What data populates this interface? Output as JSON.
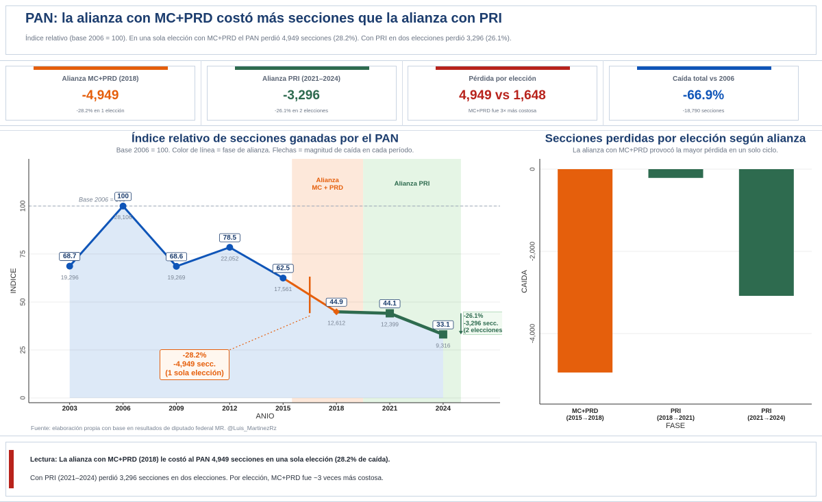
{
  "header": {
    "title": "PAN: la alianza con MC+PRD costó más secciones que la alianza con PRI",
    "subtitle": "Índice relativo (base 2006 = 100). En una sola elección con MC+PRD el PAN perdió 4,949 secciones (28.2%). Con PRI en dos elecciones perdió 3,296 (26.1%)."
  },
  "kpis": [
    {
      "label": "Alianza MC+PRD (2018)",
      "value": "-4,949",
      "note": "-28.2% en 1 elección",
      "color": "#e55f0c"
    },
    {
      "label": "Alianza PRI (2021–2024)",
      "value": "-3,296",
      "note": "-26.1% en 2 elecciones",
      "color": "#2e6b4f"
    },
    {
      "label": "Pérdida por elección",
      "value": "4,949 vs 1,648",
      "note": "MC+PRD fue 3× más costosa",
      "color": "#b8231c"
    },
    {
      "label": "Caída total vs 2006",
      "value": "-66.9%",
      "note": "-18,790 secciones",
      "color": "#0f55b8"
    }
  ],
  "chart_data": [
    {
      "type": "line",
      "title": "Índice relativo de secciones ganadas por el PAN",
      "subtitle": "Base 2006 = 100. Color de línea = fase de alianza. Flechas = magnitud de caída en cada período.",
      "x": [
        2003,
        2006,
        2009,
        2012,
        2015,
        2018,
        2021,
        2024
      ],
      "values": [
        68.7,
        100,
        68.6,
        78.5,
        62.5,
        44.9,
        44.1,
        33.1
      ],
      "sections": {
        "values": [
          19296,
          28106,
          19269,
          22052,
          17561,
          12612,
          12399,
          9316
        ],
        "value_labels": [
          "19,296",
          "28,106",
          "19,269",
          "22,052",
          "17,561",
          "12,612",
          "12,399",
          "9,316"
        ]
      },
      "xlim": [
        2000.7,
        2027.2
      ],
      "xticks": [
        2003,
        2006,
        2009,
        2012,
        2015,
        2018,
        2021,
        2024
      ],
      "ylim": [
        -2.5,
        124.6
      ],
      "yticks": [
        0,
        25,
        50,
        75,
        100
      ],
      "xlabel": "ANIO",
      "ylabel": "INDICE",
      "segment_colors": [
        "#0f55b8",
        "#0f55b8",
        "#0f55b8",
        "#0f55b8",
        "#e55f0c",
        "#2e6b4f",
        "#2e6b4f"
      ],
      "point_colors": [
        "#0f55b8",
        "#0f55b8",
        "#0f55b8",
        "#0f55b8",
        "#0f55b8",
        "#e55f0c",
        "#2e6b4f",
        "#2e6b4f"
      ],
      "markers": [
        "circle",
        "circle",
        "circle",
        "circle",
        "circle",
        "diamond",
        "square",
        "square"
      ],
      "area_color": "#dde9f7",
      "baseline": {
        "value": 100,
        "label": "Base 2006 = 100"
      },
      "phases": [
        {
          "label": "Alianza\nMC + PRD",
          "start": 2015.5,
          "end": 2019.5,
          "color": "#fde8da",
          "text_color": "#e55f0c"
        },
        {
          "label": "Alianza PRI",
          "start": 2019.5,
          "end": 2025,
          "color": "#e5f5e5",
          "text_color": "#2e6b4f"
        }
      ],
      "annotations": [
        {
          "text": "-28.2%\n-4,949 secc.\n(1 sola elección)",
          "color": "#e55f0c"
        },
        {
          "text": "-26.1%\n-3,296 secc.\n(2 elecciones)",
          "color": "#2e6b4f"
        }
      ],
      "source": "Fuente: elaboración propia con base en resultados de diputado federal MR. @Luis_MartinezRz"
    },
    {
      "type": "bar",
      "title": "Secciones perdidas por elección según alianza",
      "subtitle": "La alianza con MC+PRD provocó la mayor pérdida en un solo ciclo.",
      "categories": [
        "MC+PRD\n(2015→2018)",
        "PRI\n(2018→2021)",
        "PRI\n(2021→2024)"
      ],
      "values": [
        -4949,
        -213,
        -3083
      ],
      "colors": [
        "#e55f0c",
        "#2e6b4f",
        "#2e6b4f"
      ],
      "ylim": [
        -5717,
        250
      ],
      "yticks": [
        0,
        {
          "value": -2000,
          "label": "-2,000"
        },
        {
          "value": -4000,
          "label": "-4,000"
        }
      ],
      "xlabel": "FASE",
      "ylabel": "CAIDA"
    }
  ],
  "footer": {
    "lead": "Lectura: La alianza con MC+PRD (2018) le costó al PAN 4,949 secciones en una sola elección (28.2% de caída).",
    "text": "Con PRI (2021–2024) perdió 3,296 secciones en dos elecciones. Por elección, MC+PRD fue ~3 veces más costosa."
  }
}
